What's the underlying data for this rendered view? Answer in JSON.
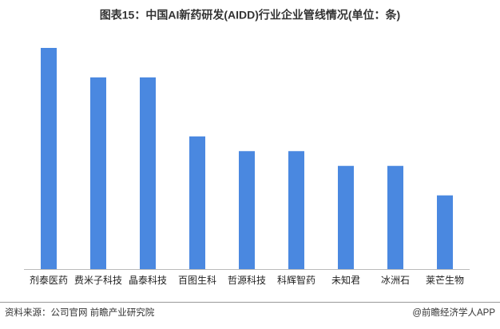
{
  "chart_data": {
    "type": "bar",
    "title": "图表15：中国AI新药研发(AIDD)行业企业管线情况(单位：条)",
    "categories": [
      "剂泰医药",
      "费米子科技",
      "晶泰科技",
      "百图生科",
      "哲源科技",
      "科辉智药",
      "未知君",
      "冰洲石",
      "莱芒生物"
    ],
    "values": [
      15,
      13,
      13,
      9,
      8,
      8,
      7,
      7,
      5
    ],
    "color": "#4a88e0",
    "source": "资料来源：公司官网 前瞻产业研究院",
    "credit": "@前瞻经济学人APP"
  }
}
